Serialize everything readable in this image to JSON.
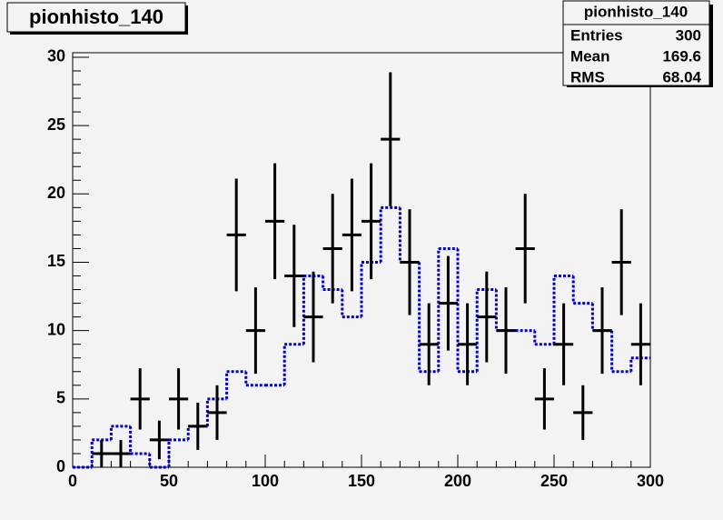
{
  "chart_data": {
    "type": "histogram",
    "title": "pionhisto_140",
    "xlim": [
      0,
      300
    ],
    "xticks": [
      0,
      50,
      100,
      150,
      200,
      250,
      300
    ],
    "ylim": [
      0,
      30.33
    ],
    "yticks": [
      0,
      5,
      10,
      15,
      20,
      25,
      30
    ],
    "bins": [
      0,
      10,
      20,
      30,
      40,
      50,
      60,
      70,
      80,
      90,
      100,
      110,
      120,
      130,
      140,
      150,
      160,
      170,
      180,
      190,
      200,
      210,
      220,
      230,
      240,
      250,
      260,
      270,
      280,
      290,
      300
    ],
    "counts": [
      0,
      2,
      3,
      1,
      0,
      2,
      3,
      5,
      7,
      6,
      6,
      9,
      14,
      13,
      11,
      15,
      19,
      15,
      7,
      16,
      7,
      13,
      10,
      10,
      9,
      14,
      12,
      10,
      7,
      8
    ],
    "color": "#0000cc",
    "points": {
      "color": "#000000",
      "x": [
        15,
        25,
        35,
        45,
        55,
        65,
        75,
        85,
        95,
        105,
        115,
        125,
        135,
        145,
        155,
        165,
        175,
        185,
        195,
        205,
        215,
        225,
        235,
        245,
        255,
        265,
        275,
        285,
        295
      ],
      "values": [
        1,
        1,
        5,
        2,
        5,
        3,
        4,
        17,
        10,
        18,
        14,
        11,
        16,
        17,
        18,
        24,
        15,
        9,
        12,
        9,
        11,
        10,
        16,
        5,
        9,
        4,
        10,
        15,
        9
      ],
      "errors": [
        1,
        1,
        2.24,
        1.41,
        2.24,
        1.73,
        2,
        4.12,
        3.16,
        4.24,
        3.74,
        3.32,
        4,
        4.12,
        4.24,
        4.9,
        3.87,
        3,
        3.46,
        3,
        3.32,
        3.16,
        4,
        2.24,
        3,
        2,
        3.16,
        3.87,
        3
      ]
    },
    "stats": {
      "title": "pionhisto_140",
      "rows": [
        {
          "label": "Entries",
          "value": 300
        },
        {
          "label": "Mean",
          "value": 169.6
        },
        {
          "label": "RMS",
          "value": 68.04
        }
      ]
    }
  }
}
